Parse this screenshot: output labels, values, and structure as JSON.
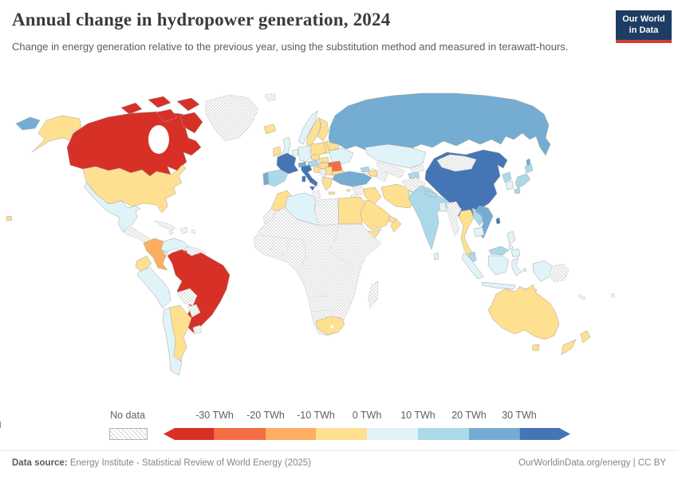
{
  "header": {
    "title": "Annual change in hydropower generation, 2024",
    "subtitle": "Change in energy generation relative to the previous year, using the substitution method and measured in terawatt-hours.",
    "logo": {
      "line1": "Our World",
      "line2": "in Data",
      "navy": "#1d3d63",
      "red": "#d23b33"
    }
  },
  "legend": {
    "no_data_label": "No data",
    "tick_labels": [
      "-30 TWh",
      "-20 TWh",
      "-10 TWh",
      "0 TWh",
      "10 TWh",
      "20 TWh",
      "30 TWh"
    ],
    "colors": [
      "#d73027",
      "#f46d43",
      "#fdae61",
      "#fee090",
      "#e0f3f8",
      "#abd9e9",
      "#74add1",
      "#4575b4"
    ]
  },
  "footer": {
    "source_label": "Data source:",
    "source_text": " Energy Institute - Statistical Review of World Energy (2025)",
    "link": "OurWorldinData.org/energy",
    "separator": " | ",
    "license": "CC BY"
  },
  "chart_data": {
    "type": "choropleth_map",
    "title": "Annual change in hydropower generation, 2024",
    "unit": "TWh",
    "legend_range": [
      -30,
      30
    ],
    "bins": [
      {
        "key": "lt-30",
        "label": "less than -30 TWh",
        "color": "#d73027"
      },
      {
        "key": "-30--20",
        "label": "-30 to -20 TWh",
        "color": "#f46d43"
      },
      {
        "key": "-20--10",
        "label": "-20 to -10 TWh",
        "color": "#fdae61"
      },
      {
        "key": "-10-0",
        "label": "-10 to 0 TWh",
        "color": "#fee090"
      },
      {
        "key": "0-10",
        "label": "0 to 10 TWh",
        "color": "#e0f3f8"
      },
      {
        "key": "10-20",
        "label": "10 to 20 TWh",
        "color": "#abd9e9"
      },
      {
        "key": "20-30",
        "label": "20 to 30 TWh",
        "color": "#74add1"
      },
      {
        "key": "gt30",
        "label": "more than 30 TWh",
        "color": "#4575b4"
      },
      {
        "key": "no-data",
        "label": "No data",
        "color": "hatch"
      }
    ],
    "countries": {
      "Canada": "lt-30",
      "Brazil": "lt-30",
      "Trinidad and Tobago": "lt-30",
      "Romania": "-30--20",
      "Colombia": "-20--10",
      "United States": "-10-0",
      "Ecuador": "-10-0",
      "Argentina": "-10-0",
      "Iceland": "-10-0",
      "Ireland": "-10-0",
      "Sweden": "-10-0",
      "Finland": "-10-0",
      "Denmark": "-10-0",
      "Baltic states": "-10-0",
      "Poland": "-10-0",
      "Belarus": "-10-0",
      "Czechia": "-10-0",
      "Slovakia": "-10-0",
      "Hungary": "-10-0",
      "Croatia": "-10-0",
      "Serbia": "-10-0",
      "Bulgaria": "-10-0",
      "Greece": "-10-0",
      "Cyprus": "-10-0",
      "Azerbaijan": "-10-0",
      "Morocco": "-10-0",
      "Egypt": "-10-0",
      "South Africa": "-10-0",
      "Iraq": "-10-0",
      "Iran": "-10-0",
      "Saudi Arabia": "-10-0",
      "Gulf states": "-10-0",
      "Oman": "-10-0",
      "Yemen": "-10-0",
      "Thailand": "-10-0",
      "Australia": "-10-0",
      "New Zealand": "-10-0",
      "Mexico": "0-10",
      "Costa Rica and Panama": "0-10",
      "Venezuela": "0-10",
      "Peru": "0-10",
      "Chile": "0-10",
      "United Kingdom": "0-10",
      "Norway": "0-10",
      "Benelux": "0-10",
      "Germany": "0-10",
      "Ukraine": "0-10",
      "Algeria": "0-10",
      "Kazakhstan": "0-10",
      "Pakistan": "0-10",
      "Bangladesh": "0-10",
      "Sri Lanka": "0-10",
      "Cambodia": "0-10",
      "Indonesia": "0-10",
      "Philippines": "0-10",
      "South Korea": "0-10",
      "Spain": "10-20",
      "Austria": "10-20",
      "Georgia": "10-20",
      "Tajikistan": "10-20",
      "India": "10-20",
      "Nepal": "10-20",
      "Laos": "10-20",
      "Malaysia": "10-20",
      "Japan": "10-20",
      "North Korea": "10-20",
      "Portugal": "20-30",
      "Switzerland": "20-30",
      "Turkey": "20-30",
      "Russia": "20-30",
      "Vietnam": "20-30",
      "France": "gt30",
      "Italy": "gt30",
      "China": "gt30",
      "Taiwan": "gt30",
      "Greenland": "no-data",
      "Central America": "no-data",
      "Cuba": "no-data",
      "Haiti and Dominican Republic": "no-data",
      "Caribbean islands": "no-data",
      "Guyana and Suriname": "no-data",
      "Bolivia": "no-data",
      "Paraguay": "no-data",
      "Uruguay": "no-data",
      "Svalbard": "no-data",
      "Bosnia and Herzegovina": "no-data",
      "Albania": "no-data",
      "Tunisia": "no-data",
      "Libya": "no-data",
      "Western Sahara": "no-data",
      "Sub-Saharan Africa": "no-data",
      "Madagascar": "no-data",
      "Syria": "no-data",
      "Israel and Jordan": "no-data",
      "Armenia": "no-data",
      "Turkmenistan": "no-data",
      "Uzbekistan": "no-data",
      "Kyrgyzstan": "no-data",
      "Afghanistan": "no-data",
      "Mongolia": "no-data",
      "Myanmar": "no-data",
      "Papua New Guinea": "no-data",
      "New Caledonia": "no-data",
      "Fiji": "no-data"
    }
  }
}
